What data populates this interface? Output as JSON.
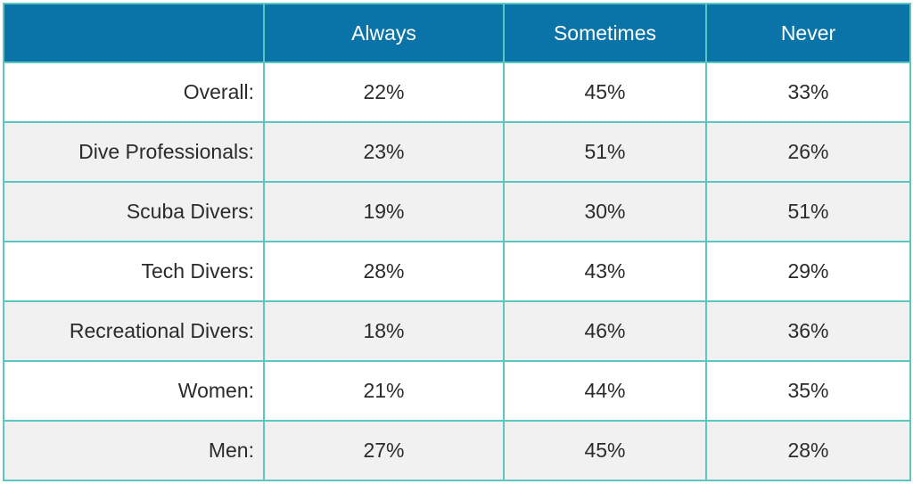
{
  "chart_data": {
    "type": "table",
    "columns": [
      "",
      "Always",
      "Sometimes",
      "Never"
    ],
    "rows": [
      {
        "label": "Overall:",
        "values": [
          "22%",
          "45%",
          "33%"
        ]
      },
      {
        "label": "Dive Professionals:",
        "values": [
          "23%",
          "51%",
          "26%"
        ]
      },
      {
        "label": "Scuba Divers:",
        "values": [
          "19%",
          "30%",
          "51%"
        ]
      },
      {
        "label": "Tech Divers:",
        "values": [
          "28%",
          "43%",
          "29%"
        ]
      },
      {
        "label": "Recreational Divers:",
        "values": [
          "18%",
          "46%",
          "36%"
        ]
      },
      {
        "label": "Women:",
        "values": [
          "21%",
          "44%",
          "35%"
        ]
      },
      {
        "label": "Men:",
        "values": [
          "27%",
          "45%",
          "28%"
        ]
      }
    ]
  },
  "colors": {
    "header_bg": "#0a74a8",
    "border": "#5cc6c0",
    "alt_row_bg": "#f1f1f1"
  }
}
